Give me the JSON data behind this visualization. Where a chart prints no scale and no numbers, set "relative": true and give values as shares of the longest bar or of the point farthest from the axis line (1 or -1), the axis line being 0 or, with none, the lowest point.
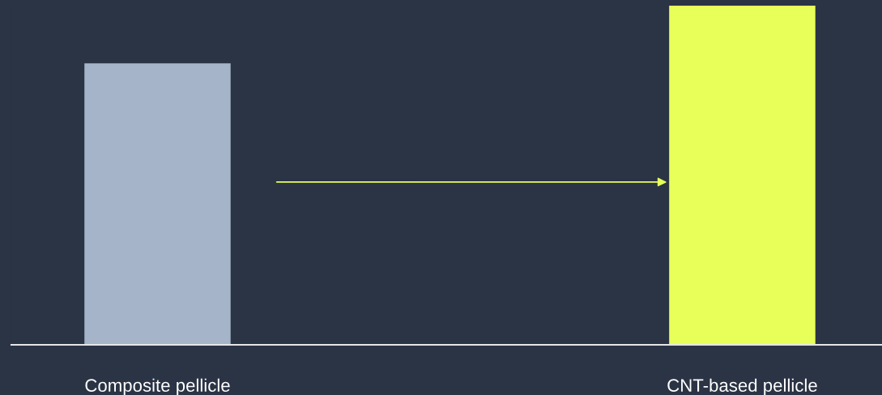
{
  "chart_data": {
    "type": "bar",
    "relative": true,
    "categories": [
      "Composite pellicle",
      "CNT-based pellicle"
    ],
    "values": [
      0.83,
      1
    ],
    "colors": [
      "#a5b4c9",
      "#e8ff59"
    ],
    "grid": false,
    "legend": false,
    "tick_labels": "x"
  }
}
